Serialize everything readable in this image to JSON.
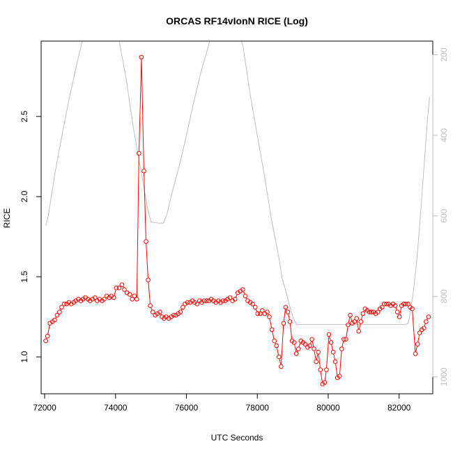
{
  "chart_data": {
    "type": "line",
    "title": "ORCAS RF14vIonN RICE (Log)",
    "xlabel": "UTC Seconds",
    "ylabel": "RICE",
    "xlim": [
      71900,
      82950
    ],
    "ylim": [
      0.77,
      2.97
    ],
    "x_ticks": [
      {
        "value": 72000,
        "label": "72000"
      },
      {
        "value": 74000,
        "label": "74000"
      },
      {
        "value": 76000,
        "label": "76000"
      },
      {
        "value": 78000,
        "label": "78000"
      },
      {
        "value": 80000,
        "label": "80000"
      },
      {
        "value": 82000,
        "label": "82000"
      }
    ],
    "y_ticks": [
      {
        "value": 1.0,
        "label": "1.0"
      },
      {
        "value": 1.5,
        "label": "1.5"
      },
      {
        "value": 2.0,
        "label": "2.0"
      },
      {
        "value": 2.5,
        "label": "2.5"
      }
    ],
    "y2lim": [
      1042,
      166
    ],
    "y2_ticks": [
      {
        "value": 200,
        "label": "200"
      },
      {
        "value": 400,
        "label": "400"
      },
      {
        "value": 600,
        "label": "600"
      },
      {
        "value": 800,
        "label": "800"
      },
      {
        "value": 1000,
        "label": "1000"
      }
    ],
    "grid": false,
    "colors": {
      "rice": "#ff0000",
      "pressure": "#bebebe"
    },
    "series": [
      {
        "role": "rice",
        "color": "#ff0000",
        "marker": "open-circle",
        "points": [
          [
            72030,
            1.1
          ],
          [
            72080,
            1.13
          ],
          [
            72150,
            1.21
          ],
          [
            72220,
            1.22
          ],
          [
            72280,
            1.23
          ],
          [
            72350,
            1.26
          ],
          [
            72420,
            1.28
          ],
          [
            72480,
            1.31
          ],
          [
            72550,
            1.33
          ],
          [
            72620,
            1.33
          ],
          [
            72680,
            1.34
          ],
          [
            72750,
            1.33
          ],
          [
            72820,
            1.34
          ],
          [
            72880,
            1.35
          ],
          [
            72950,
            1.36
          ],
          [
            73020,
            1.35
          ],
          [
            73080,
            1.36
          ],
          [
            73150,
            1.37
          ],
          [
            73220,
            1.36
          ],
          [
            73280,
            1.35
          ],
          [
            73350,
            1.36
          ],
          [
            73420,
            1.37
          ],
          [
            73480,
            1.35
          ],
          [
            73550,
            1.36
          ],
          [
            73620,
            1.35
          ],
          [
            73680,
            1.36
          ],
          [
            73750,
            1.38
          ],
          [
            73820,
            1.37
          ],
          [
            73880,
            1.38
          ],
          [
            73950,
            1.37
          ],
          [
            74020,
            1.43
          ],
          [
            74100,
            1.43
          ],
          [
            74180,
            1.45
          ],
          [
            74250,
            1.42
          ],
          [
            74320,
            1.4
          ],
          [
            74400,
            1.39
          ],
          [
            74470,
            1.36
          ],
          [
            74530,
            1.38
          ],
          [
            74600,
            1.36
          ],
          [
            74660,
            2.27
          ],
          [
            74730,
            2.87
          ],
          [
            74800,
            2.16
          ],
          [
            74860,
            1.72
          ],
          [
            74920,
            1.48
          ],
          [
            74980,
            1.32
          ],
          [
            75050,
            1.28
          ],
          [
            75120,
            1.26
          ],
          [
            75180,
            1.27
          ],
          [
            75250,
            1.28
          ],
          [
            75310,
            1.25
          ],
          [
            75370,
            1.24
          ],
          [
            75430,
            1.25
          ],
          [
            75500,
            1.24
          ],
          [
            75570,
            1.25
          ],
          [
            75640,
            1.26
          ],
          [
            75700,
            1.26
          ],
          [
            75770,
            1.27
          ],
          [
            75830,
            1.28
          ],
          [
            75900,
            1.31
          ],
          [
            75960,
            1.33
          ],
          [
            76030,
            1.34
          ],
          [
            76100,
            1.34
          ],
          [
            76170,
            1.35
          ],
          [
            76230,
            1.34
          ],
          [
            76300,
            1.33
          ],
          [
            76370,
            1.35
          ],
          [
            76430,
            1.34
          ],
          [
            76500,
            1.35
          ],
          [
            76570,
            1.35
          ],
          [
            76630,
            1.35
          ],
          [
            76700,
            1.36
          ],
          [
            76760,
            1.35
          ],
          [
            76830,
            1.34
          ],
          [
            76900,
            1.35
          ],
          [
            76960,
            1.34
          ],
          [
            77030,
            1.35
          ],
          [
            77100,
            1.35
          ],
          [
            77160,
            1.36
          ],
          [
            77230,
            1.37
          ],
          [
            77300,
            1.35
          ],
          [
            77370,
            1.36
          ],
          [
            77450,
            1.4
          ],
          [
            77520,
            1.41
          ],
          [
            77590,
            1.42
          ],
          [
            77660,
            1.38
          ],
          [
            77730,
            1.35
          ],
          [
            77800,
            1.34
          ],
          [
            77870,
            1.33
          ],
          [
            77940,
            1.31
          ],
          [
            78010,
            1.27
          ],
          [
            78080,
            1.27
          ],
          [
            78140,
            1.29
          ],
          [
            78210,
            1.27
          ],
          [
            78280,
            1.28
          ],
          [
            78340,
            1.25
          ],
          [
            78410,
            1.17
          ],
          [
            78480,
            1.1
          ],
          [
            78540,
            1.07
          ],
          [
            78610,
            1.0
          ],
          [
            78670,
            0.94
          ],
          [
            78740,
            1.21
          ],
          [
            78800,
            1.31
          ],
          [
            78860,
            1.28
          ],
          [
            78920,
            1.22
          ],
          [
            78980,
            1.1
          ],
          [
            79040,
            1.09
          ],
          [
            79100,
            1.02
          ],
          [
            79160,
            1.05
          ],
          [
            79230,
            1.1
          ],
          [
            79290,
            1.09
          ],
          [
            79350,
            1.08
          ],
          [
            79420,
            1.06
          ],
          [
            79480,
            1.07
          ],
          [
            79540,
            1.11
          ],
          [
            79600,
            1.05
          ],
          [
            79660,
            0.97
          ],
          [
            79720,
            1.03
          ],
          [
            79780,
            0.92
          ],
          [
            79840,
            0.83
          ],
          [
            79900,
            0.84
          ],
          [
            79950,
            0.92
          ],
          [
            80020,
            1.14
          ],
          [
            80080,
            1.09
          ],
          [
            80140,
            1.03
          ],
          [
            80200,
            0.97
          ],
          [
            80260,
            0.87
          ],
          [
            80320,
            0.88
          ],
          [
            80380,
            1.05
          ],
          [
            80440,
            1.11
          ],
          [
            80500,
            1.11
          ],
          [
            80560,
            1.2
          ],
          [
            80620,
            1.26
          ],
          [
            80680,
            1.21
          ],
          [
            80740,
            1.22
          ],
          [
            80800,
            1.24
          ],
          [
            80860,
            1.16
          ],
          [
            80920,
            1.22
          ],
          [
            80980,
            1.27
          ],
          [
            81040,
            1.3
          ],
          [
            81100,
            1.29
          ],
          [
            81160,
            1.28
          ],
          [
            81220,
            1.28
          ],
          [
            81280,
            1.28
          ],
          [
            81340,
            1.27
          ],
          [
            81400,
            1.28
          ],
          [
            81460,
            1.3
          ],
          [
            81520,
            1.31
          ],
          [
            81580,
            1.33
          ],
          [
            81640,
            1.33
          ],
          [
            81700,
            1.33
          ],
          [
            81760,
            1.32
          ],
          [
            81830,
            1.33
          ],
          [
            81890,
            1.32
          ],
          [
            81950,
            1.28
          ],
          [
            82010,
            1.25
          ],
          [
            82070,
            1.32
          ],
          [
            82130,
            1.33
          ],
          [
            82190,
            1.33
          ],
          [
            82250,
            1.33
          ],
          [
            82310,
            1.31
          ],
          [
            82370,
            1.3
          ],
          [
            82460,
            1.02
          ],
          [
            82520,
            1.08
          ],
          [
            82580,
            1.15
          ],
          [
            82640,
            1.17
          ],
          [
            82700,
            1.18
          ],
          [
            82760,
            1.22
          ],
          [
            82830,
            1.25
          ]
        ]
      },
      {
        "role": "pressure",
        "color": "#bebebe",
        "axis": "right",
        "points": [
          [
            72030,
            625
          ],
          [
            72100,
            600
          ],
          [
            72300,
            490
          ],
          [
            72500,
            395
          ],
          [
            72700,
            305
          ],
          [
            72900,
            225
          ],
          [
            73050,
            170
          ],
          [
            73100,
            150
          ],
          [
            74000,
            150
          ],
          [
            74100,
            165
          ],
          [
            74300,
            260
          ],
          [
            74500,
            380
          ],
          [
            74700,
            480
          ],
          [
            74900,
            580
          ],
          [
            75000,
            615
          ],
          [
            75200,
            618
          ],
          [
            75350,
            618
          ],
          [
            75450,
            595
          ],
          [
            75600,
            540
          ],
          [
            75800,
            475
          ],
          [
            76000,
            400
          ],
          [
            76200,
            320
          ],
          [
            76400,
            245
          ],
          [
            76600,
            185
          ],
          [
            76700,
            150
          ],
          [
            77500,
            150
          ],
          [
            77600,
            180
          ],
          [
            77700,
            240
          ],
          [
            77800,
            300
          ],
          [
            78000,
            400
          ],
          [
            78200,
            500
          ],
          [
            78400,
            610
          ],
          [
            78600,
            700
          ],
          [
            78700,
            755
          ],
          [
            78800,
            785
          ],
          [
            78900,
            820
          ],
          [
            79000,
            850
          ],
          [
            79100,
            870
          ],
          [
            79200,
            870
          ],
          [
            82150,
            870
          ],
          [
            82250,
            868
          ],
          [
            82300,
            850
          ],
          [
            82400,
            790
          ],
          [
            82500,
            710
          ],
          [
            82600,
            600
          ],
          [
            82700,
            480
          ],
          [
            82800,
            360
          ],
          [
            82860,
            305
          ]
        ]
      }
    ]
  }
}
